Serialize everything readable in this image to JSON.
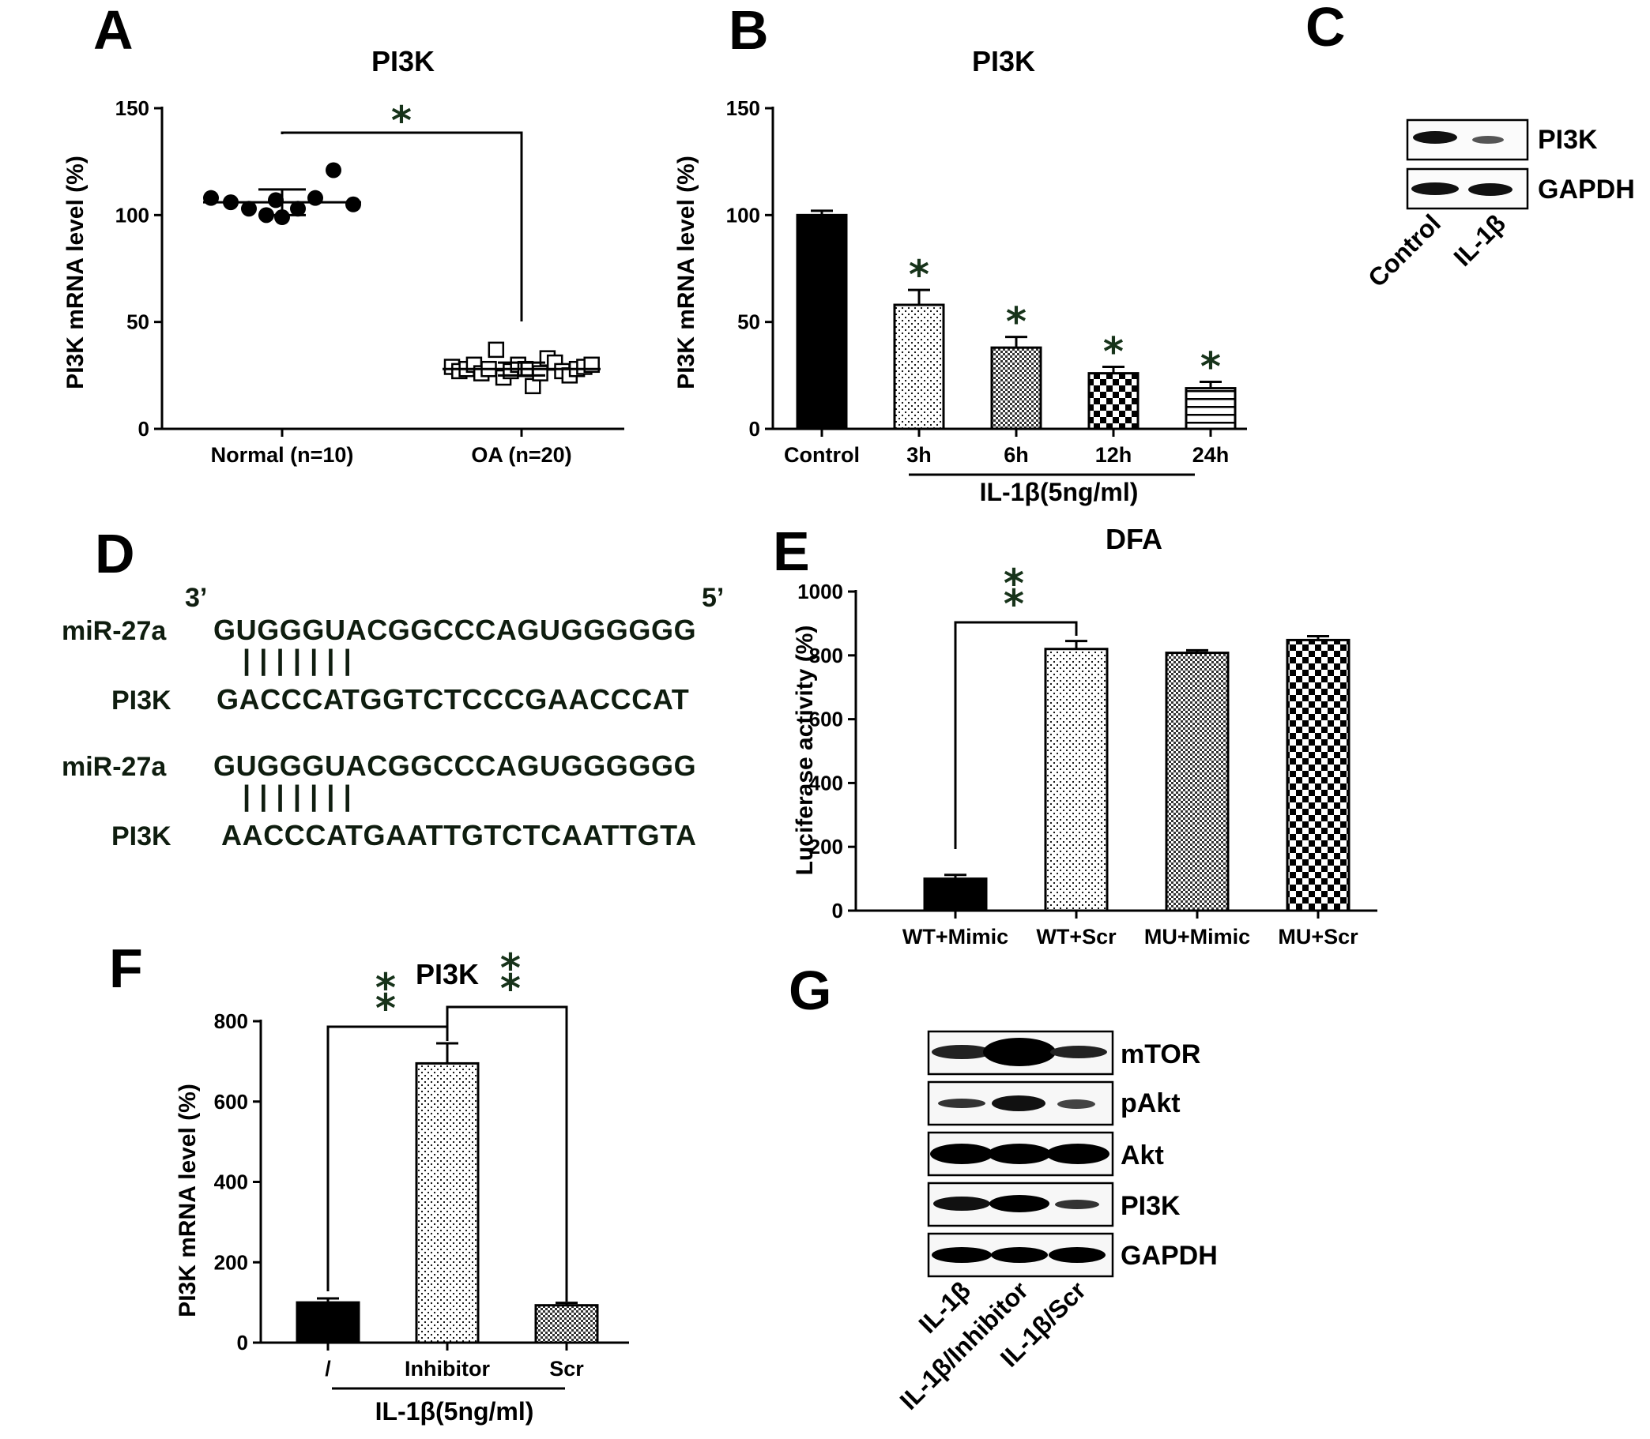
{
  "colors": {
    "ink": "#000000",
    "star": "#17331a",
    "sequence": "#0f1d0f"
  },
  "panels": {
    "A": {
      "label": "A",
      "title": "PI3K",
      "ylabel": "PI3K mRNA level (%)"
    },
    "B": {
      "label": "B",
      "title": "PI3K",
      "ylabel": "PI3K mRNA level (%)",
      "group_label": "IL-1β(5ng/ml)"
    },
    "C": {
      "label": "C",
      "bands": [
        "PI3K",
        "GAPDH"
      ],
      "lanes": [
        "Control",
        "IL-1β"
      ]
    },
    "D": {
      "label": "D",
      "end3": "3’",
      "end5": "5’",
      "pairs": [
        {
          "mir_label": "miR-27a",
          "mir_seq": "GUGGGUACGGCCCAGUGGGGGG",
          "bars": "| | | | | | |",
          "target_label": "PI3K",
          "target_seq": "GACCCATGGTCTCCCGAACCCAT"
        },
        {
          "mir_label": "miR-27a",
          "mir_seq": "GUGGGUACGGCCCAGUGGGGGG",
          "bars": "| | | | | | |",
          "target_label": "PI3K",
          "target_seq": "AACCCATGAATTGTCTCAATTGTA"
        }
      ]
    },
    "E": {
      "label": "E",
      "title": "DFA",
      "ylabel": "Luciferase activity (%)"
    },
    "F": {
      "label": "F",
      "title": "PI3K",
      "ylabel": "PI3K mRNA level (%)",
      "group_label": "IL-1β(5ng/ml)"
    },
    "G": {
      "label": "G",
      "bands": [
        "mTOR",
        "pAkt",
        "Akt",
        "PI3K",
        "GAPDH"
      ],
      "lanes": [
        "IL-1β",
        "IL-1β/Inhibitor",
        "IL-1β/Scr"
      ]
    }
  },
  "chart_data": [
    {
      "panel": "A",
      "type": "scatter",
      "title": "PI3K",
      "ylabel": "PI3K mRNA level (%)",
      "ylim": [
        0,
        150
      ],
      "yticks": [
        0,
        50,
        100,
        150
      ],
      "categories": [
        "Normal (n=10)",
        "OA (n=20)"
      ],
      "series": [
        {
          "name": "Normal (n=10)",
          "marker": "filled-circle",
          "mean": 106,
          "sd": 6,
          "values": [
            108,
            106,
            103,
            100,
            99,
            103,
            108,
            121,
            105,
            107
          ]
        },
        {
          "name": "OA (n=20)",
          "marker": "open-square",
          "mean": 28,
          "sd": 3,
          "values": [
            29,
            27,
            28,
            30,
            26,
            28,
            37,
            24,
            27,
            30,
            28,
            20,
            26,
            33,
            31,
            27,
            25,
            28,
            29,
            30
          ]
        }
      ],
      "significance": [
        {
          "from": 0,
          "to": 1,
          "label": "*"
        }
      ]
    },
    {
      "panel": "B",
      "type": "bar",
      "title": "PI3K",
      "ylabel": "PI3K mRNA level (%)",
      "ylim": [
        0,
        150
      ],
      "yticks": [
        0,
        50,
        100,
        150
      ],
      "categories": [
        "Control",
        "3h",
        "6h",
        "12h",
        "24h"
      ],
      "values": [
        100,
        58,
        38,
        26,
        19
      ],
      "errors": [
        2,
        7,
        5,
        3,
        3
      ],
      "patterns": [
        "solid",
        "dots",
        "dense-check",
        "check",
        "hlines"
      ],
      "stars": [
        "",
        "*",
        "*",
        "*",
        "*"
      ],
      "group_label": "IL-1β(5ng/ml)"
    },
    {
      "panel": "E",
      "type": "bar",
      "title": "DFA",
      "ylabel": "Luciferase activity (%)",
      "ylim": [
        0,
        1000
      ],
      "yticks": [
        0,
        200,
        400,
        600,
        800,
        1000
      ],
      "categories": [
        "WT+Mimic",
        "WT+Scr",
        "MU+Mimic",
        "MU+Scr"
      ],
      "values": [
        100,
        820,
        808,
        848
      ],
      "errors": [
        12,
        25,
        8,
        12
      ],
      "patterns": [
        "solid",
        "dots",
        "dense-check",
        "check"
      ],
      "significance": [
        {
          "from": 0,
          "to": 1,
          "label": "**"
        }
      ]
    },
    {
      "panel": "F",
      "type": "bar",
      "title": "PI3K",
      "ylabel": "PI3K mRNA level (%)",
      "ylim": [
        0,
        800
      ],
      "yticks": [
        0,
        200,
        400,
        600,
        800
      ],
      "categories": [
        "/",
        "Inhibitor",
        "Scr"
      ],
      "values": [
        100,
        695,
        93
      ],
      "errors": [
        10,
        50,
        6
      ],
      "patterns": [
        "solid",
        "dots",
        "dense-check"
      ],
      "significance": [
        {
          "from": 0,
          "to": 1,
          "label": "**"
        },
        {
          "from": 1,
          "to": 2,
          "label": "**"
        }
      ],
      "group_label": "IL-1β(5ng/ml)"
    }
  ]
}
